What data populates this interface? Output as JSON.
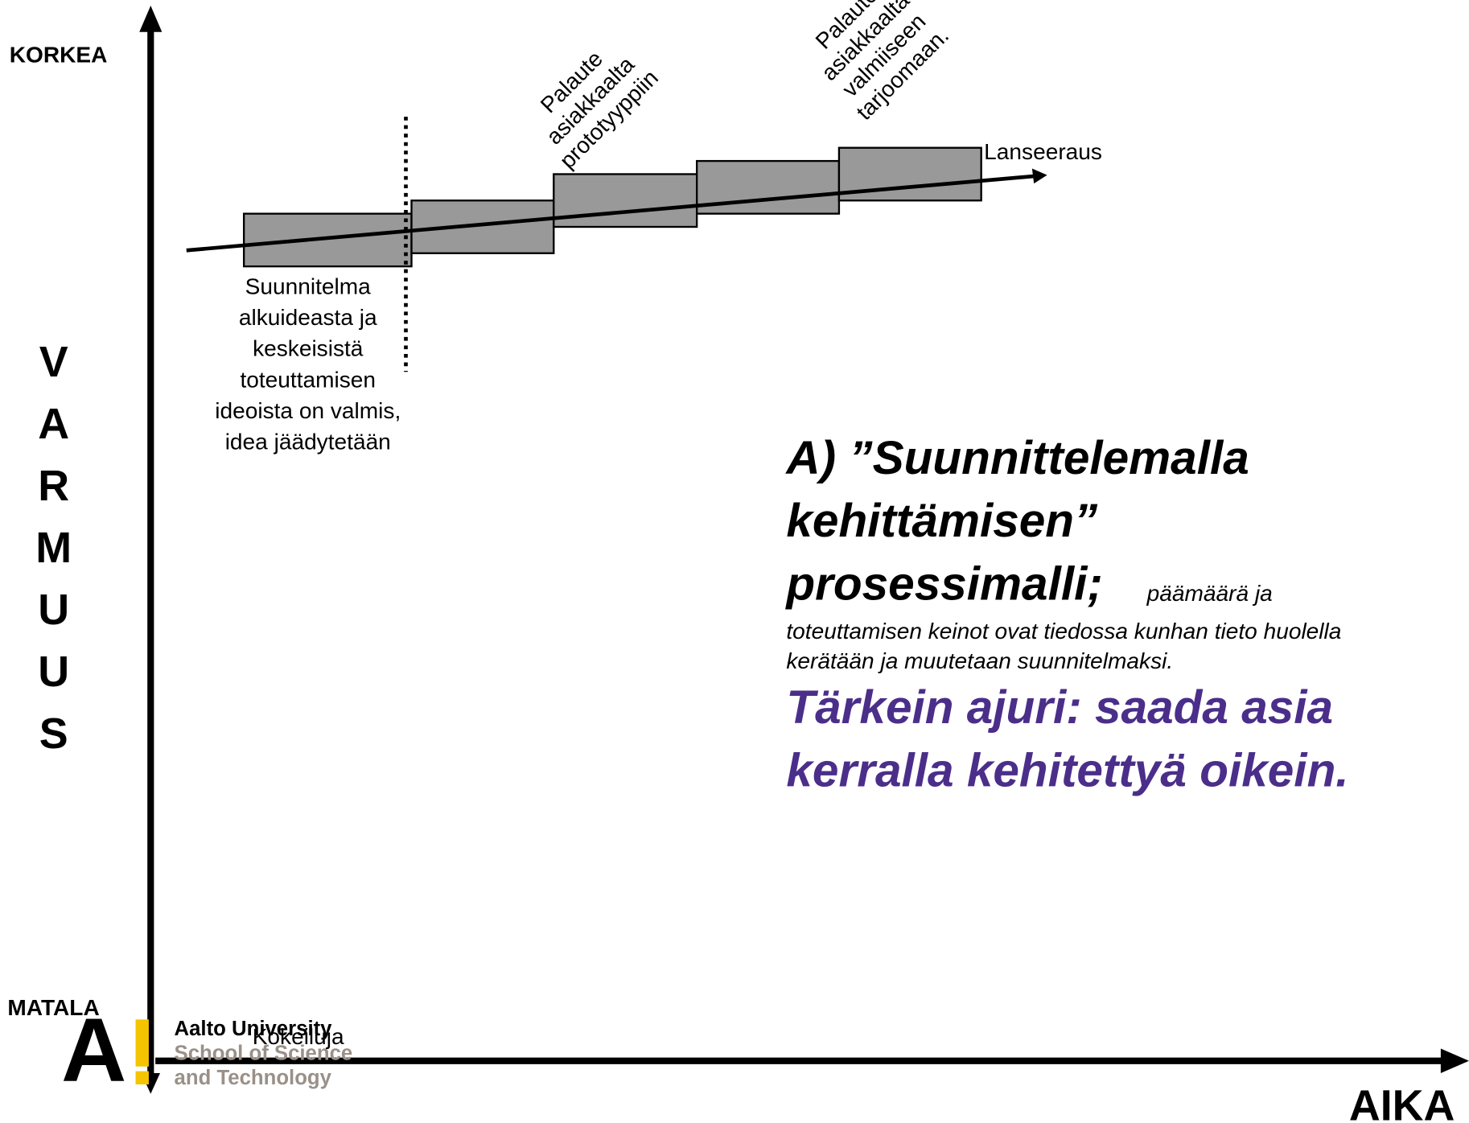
{
  "axis_labels": {
    "high": "KORKEA",
    "low": "MATALA",
    "y_letters": [
      "V",
      "A",
      "R",
      "M",
      "U",
      "U",
      "S"
    ],
    "x": "AIKA"
  },
  "annotations": {
    "prototype_feedback": [
      "Palaute",
      "asiakkaalta",
      "prototyyppiin"
    ],
    "final_feedback": [
      "Palaute",
      "asiakkaalta",
      "valmiiseen",
      "tarjoomaan."
    ],
    "launch": "Lanseeraus",
    "plan": [
      "Suunnitelma",
      "alkuideasta ja",
      "keskeisistä",
      "toteuttamisen",
      "ideoista on valmis,",
      "idea jäädytetään"
    ],
    "experiments": "Kokeiluja"
  },
  "heading": {
    "lines": [
      "A) ”Suunnittelemalla",
      "kehittämisen”",
      "prosessimalli;"
    ],
    "note_lines": [
      "päämäärä ja",
      "toteuttamisen keinot ovat tiedossa kunhan tieto huolella",
      "kerätään ja muutetaan suunnitelmaksi."
    ],
    "driver_lines": [
      "Tärkein ajuri: saada asia",
      "kerralla kehitettyä oikein."
    ]
  },
  "logo": {
    "lines": [
      "Aalto University",
      "School of Science",
      "and Technology"
    ]
  }
}
